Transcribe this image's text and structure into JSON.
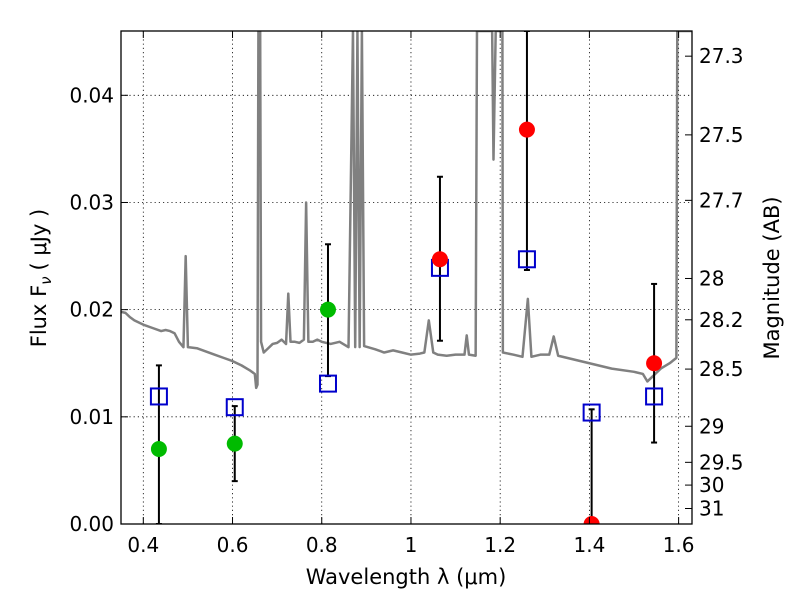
{
  "chart_data": {
    "type": "scatter",
    "xlabel": "Wavelength  λ (μm)",
    "ylabel": "Flux  F",
    "ylabel_sub": "ν",
    "ylabel_units": "( μJy )",
    "ylabel_right": "Magnitude (AB)",
    "xlim": [
      0.35,
      1.63
    ],
    "ylim": [
      0.0,
      0.046
    ],
    "grid": true,
    "x_ticks": [
      0.4,
      0.6,
      0.8,
      1.0,
      1.2,
      1.4,
      1.6
    ],
    "x_tick_labels": [
      "0.4",
      "0.6",
      "0.8",
      "1",
      "1.2",
      "1.4",
      "1.6"
    ],
    "y_ticks": [
      0.0,
      0.01,
      0.02,
      0.03,
      0.04
    ],
    "y_tick_labels": [
      "0.00",
      "0.01",
      "0.02",
      "0.03",
      "0.04"
    ],
    "right_ticks": [
      27.3,
      27.5,
      27.7,
      28,
      28.2,
      28.5,
      29,
      29.5,
      30,
      31
    ],
    "right_tick_labels": [
      "27.3",
      "27.5",
      "27.7",
      "28",
      "28.2",
      "28.5",
      "29",
      "29.5",
      "30",
      "31"
    ],
    "colors": {
      "model": "#808080",
      "model_points": "#0000cc",
      "detections": "#ff0000",
      "photometry": "#00bb00",
      "errorbar": "#000000"
    },
    "series": [
      {
        "kind": "model_spectrum",
        "points": [
          [
            0.35,
            0.0198
          ],
          [
            0.36,
            0.0197
          ],
          [
            0.37,
            0.0193
          ],
          [
            0.38,
            0.019
          ],
          [
            0.39,
            0.0188
          ],
          [
            0.4,
            0.0186
          ],
          [
            0.42,
            0.0183
          ],
          [
            0.44,
            0.018
          ],
          [
            0.45,
            0.0181
          ],
          [
            0.46,
            0.018
          ],
          [
            0.47,
            0.0178
          ],
          [
            0.48,
            0.017
          ],
          [
            0.49,
            0.0165
          ],
          [
            0.495,
            0.025
          ],
          [
            0.5,
            0.0165
          ],
          [
            0.52,
            0.0164
          ],
          [
            0.54,
            0.0161
          ],
          [
            0.56,
            0.0158
          ],
          [
            0.58,
            0.0155
          ],
          [
            0.6,
            0.0152
          ],
          [
            0.62,
            0.0148
          ],
          [
            0.64,
            0.0143
          ],
          [
            0.65,
            0.014
          ],
          [
            0.653,
            0.0127
          ],
          [
            0.656,
            0.013
          ],
          [
            0.658,
            0.046
          ],
          [
            0.662,
            0.046
          ],
          [
            0.664,
            0.017
          ],
          [
            0.67,
            0.016
          ],
          [
            0.68,
            0.0164
          ],
          [
            0.69,
            0.0168
          ],
          [
            0.7,
            0.0169
          ],
          [
            0.71,
            0.0172
          ],
          [
            0.72,
            0.0168
          ],
          [
            0.725,
            0.0215
          ],
          [
            0.73,
            0.017
          ],
          [
            0.74,
            0.017
          ],
          [
            0.75,
            0.0169
          ],
          [
            0.76,
            0.0172
          ],
          [
            0.765,
            0.03
          ],
          [
            0.77,
            0.017
          ],
          [
            0.78,
            0.017
          ],
          [
            0.79,
            0.0172
          ],
          [
            0.8,
            0.017
          ],
          [
            0.82,
            0.0168
          ],
          [
            0.84,
            0.017
          ],
          [
            0.86,
            0.0165
          ],
          [
            0.87,
            0.046
          ],
          [
            0.875,
            0.0165
          ],
          [
            0.88,
            0.046
          ],
          [
            0.885,
            0.0165
          ],
          [
            0.89,
            0.046
          ],
          [
            0.895,
            0.0166
          ],
          [
            0.92,
            0.0163
          ],
          [
            0.94,
            0.016
          ],
          [
            0.96,
            0.0162
          ],
          [
            0.98,
            0.016
          ],
          [
            1.0,
            0.0158
          ],
          [
            1.02,
            0.0159
          ],
          [
            1.03,
            0.016
          ],
          [
            1.04,
            0.019
          ],
          [
            1.05,
            0.016
          ],
          [
            1.06,
            0.0158
          ],
          [
            1.08,
            0.0157
          ],
          [
            1.1,
            0.0158
          ],
          [
            1.12,
            0.0158
          ],
          [
            1.125,
            0.0176
          ],
          [
            1.13,
            0.0158
          ],
          [
            1.145,
            0.0157
          ],
          [
            1.148,
            0.046
          ],
          [
            1.182,
            0.046
          ],
          [
            1.185,
            0.034
          ],
          [
            1.19,
            0.046
          ],
          [
            1.205,
            0.046
          ],
          [
            1.206,
            0.016
          ],
          [
            1.23,
            0.0158
          ],
          [
            1.25,
            0.0156
          ],
          [
            1.262,
            0.021
          ],
          [
            1.27,
            0.0156
          ],
          [
            1.29,
            0.0158
          ],
          [
            1.31,
            0.0158
          ],
          [
            1.32,
            0.0175
          ],
          [
            1.33,
            0.0157
          ],
          [
            1.35,
            0.0155
          ],
          [
            1.4,
            0.015
          ],
          [
            1.45,
            0.0145
          ],
          [
            1.5,
            0.0142
          ],
          [
            1.52,
            0.014
          ],
          [
            1.53,
            0.0133
          ],
          [
            1.54,
            0.0137
          ],
          [
            1.56,
            0.0145
          ],
          [
            1.58,
            0.015
          ],
          [
            1.595,
            0.0155
          ],
          [
            1.597,
            0.046
          ],
          [
            1.63,
            0.046
          ]
        ]
      },
      {
        "kind": "model_points",
        "marker": "open-square",
        "points": [
          [
            0.435,
            0.0119
          ],
          [
            0.605,
            0.0109
          ],
          [
            0.814,
            0.0131
          ],
          [
            1.065,
            0.0239
          ],
          [
            1.26,
            0.0247
          ],
          [
            1.405,
            0.0104
          ],
          [
            1.545,
            0.0119
          ]
        ]
      },
      {
        "kind": "detections",
        "marker": "filled-circle",
        "points": [
          [
            1.065,
            0.0247
          ],
          [
            1.26,
            0.0368
          ],
          [
            1.405,
            0.0
          ],
          [
            1.545,
            0.015
          ]
        ],
        "errors": [
          [
            0.0171,
            0.0324
          ],
          [
            0.0237,
            0.046
          ],
          [
            0.0,
            0.0107
          ],
          [
            0.0076,
            0.0224
          ]
        ]
      },
      {
        "kind": "photometry",
        "marker": "filled-circle",
        "points": [
          [
            0.435,
            0.007
          ],
          [
            0.605,
            0.0075
          ],
          [
            0.814,
            0.02
          ]
        ],
        "errors": [
          [
            0.0,
            0.0148
          ],
          [
            0.004,
            0.011
          ],
          [
            0.0138,
            0.0261
          ]
        ]
      }
    ]
  }
}
